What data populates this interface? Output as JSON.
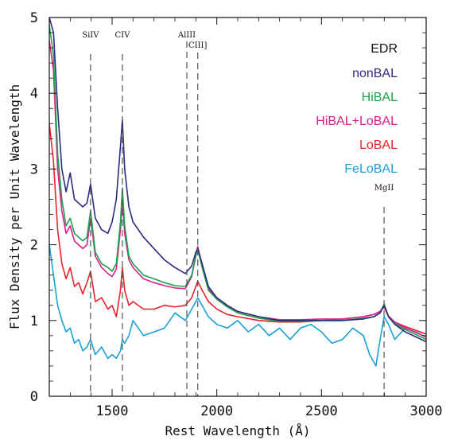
{
  "chart_data": {
    "type": "line",
    "title": "",
    "xlabel": "Rest Wavelength (Å)",
    "ylabel": "Flux Density per Unit Wavelength",
    "xlim": [
      1200,
      3000
    ],
    "ylim": [
      0,
      5
    ],
    "grid": false,
    "legend_position": "top-right",
    "legend_title": "EDR",
    "x_ticks": [
      1500,
      2000,
      2500,
      3000
    ],
    "y_ticks": [
      0,
      1,
      2,
      3,
      4,
      5
    ],
    "line_annotations": [
      {
        "label": "SiIV",
        "x": 1397
      },
      {
        "label": "CIV",
        "x": 1549
      },
      {
        "label": "AlIII",
        "x": 1857
      },
      {
        "label": "CIII]",
        "x": 1909
      },
      {
        "label": "MgII",
        "x": 2799
      }
    ],
    "series": [
      {
        "name": "nonBAL",
        "color": "#2b2b80",
        "x": [
          1200,
          1220,
          1240,
          1260,
          1280,
          1300,
          1320,
          1340,
          1360,
          1380,
          1397,
          1420,
          1450,
          1480,
          1500,
          1520,
          1540,
          1549,
          1560,
          1580,
          1600,
          1650,
          1700,
          1750,
          1800,
          1850,
          1880,
          1900,
          1909,
          1930,
          1960,
          2000,
          2050,
          2100,
          2200,
          2300,
          2400,
          2500,
          2600,
          2700,
          2750,
          2780,
          2799,
          2820,
          2850,
          2900,
          3000
        ],
        "y": [
          5.0,
          4.8,
          3.8,
          3.0,
          2.7,
          2.95,
          2.6,
          2.55,
          2.5,
          2.55,
          2.8,
          2.35,
          2.2,
          2.15,
          2.3,
          2.6,
          3.3,
          3.65,
          3.0,
          2.5,
          2.3,
          2.1,
          1.95,
          1.8,
          1.7,
          1.62,
          1.72,
          1.9,
          1.95,
          1.75,
          1.45,
          1.3,
          1.2,
          1.12,
          1.05,
          1.0,
          1.0,
          1.0,
          1.0,
          1.02,
          1.05,
          1.1,
          1.2,
          1.05,
          0.95,
          0.85,
          0.72
        ]
      },
      {
        "name": "HiBAL",
        "color": "#1fa04c",
        "x": [
          1200,
          1220,
          1240,
          1260,
          1280,
          1300,
          1320,
          1340,
          1360,
          1380,
          1397,
          1420,
          1450,
          1480,
          1500,
          1520,
          1540,
          1549,
          1560,
          1580,
          1600,
          1650,
          1700,
          1750,
          1800,
          1850,
          1880,
          1900,
          1909,
          1930,
          1960,
          2000,
          2050,
          2100,
          2200,
          2300,
          2400,
          2500,
          2600,
          2700,
          2750,
          2780,
          2799,
          2820,
          2850,
          2900,
          3000
        ],
        "y": [
          4.9,
          4.5,
          3.2,
          2.6,
          2.25,
          2.35,
          2.15,
          2.1,
          2.05,
          2.1,
          2.45,
          1.9,
          1.75,
          1.7,
          1.65,
          1.75,
          2.3,
          2.75,
          2.25,
          1.85,
          1.75,
          1.6,
          1.55,
          1.5,
          1.46,
          1.45,
          1.6,
          1.85,
          1.95,
          1.7,
          1.4,
          1.28,
          1.18,
          1.1,
          1.03,
          0.99,
          0.99,
          1.0,
          1.0,
          1.03,
          1.05,
          1.1,
          1.22,
          1.05,
          0.96,
          0.88,
          0.75
        ]
      },
      {
        "name": "HiBAL+LoBAL",
        "color": "#e01e8c",
        "x": [
          1200,
          1220,
          1240,
          1260,
          1280,
          1300,
          1320,
          1340,
          1360,
          1380,
          1397,
          1420,
          1450,
          1480,
          1500,
          1520,
          1540,
          1549,
          1560,
          1580,
          1600,
          1650,
          1700,
          1750,
          1800,
          1850,
          1880,
          1900,
          1909,
          1930,
          1960,
          2000,
          2050,
          2100,
          2200,
          2300,
          2400,
          2500,
          2600,
          2700,
          2750,
          2780,
          2799,
          2820,
          2850,
          2900,
          3000
        ],
        "y": [
          4.7,
          4.3,
          3.0,
          2.45,
          2.15,
          2.25,
          2.05,
          2.0,
          1.95,
          2.0,
          2.35,
          1.85,
          1.7,
          1.62,
          1.58,
          1.68,
          2.2,
          2.6,
          2.15,
          1.8,
          1.7,
          1.55,
          1.5,
          1.46,
          1.43,
          1.42,
          1.58,
          1.85,
          1.98,
          1.72,
          1.42,
          1.3,
          1.2,
          1.12,
          1.05,
          1.01,
          1.01,
          1.02,
          1.02,
          1.05,
          1.08,
          1.12,
          1.2,
          1.06,
          0.98,
          0.9,
          0.78
        ]
      },
      {
        "name": "LoBAL",
        "color": "#e8222a",
        "x": [
          1200,
          1220,
          1240,
          1260,
          1280,
          1300,
          1320,
          1340,
          1360,
          1380,
          1397,
          1420,
          1450,
          1480,
          1500,
          1520,
          1540,
          1549,
          1560,
          1580,
          1600,
          1650,
          1700,
          1750,
          1800,
          1850,
          1880,
          1900,
          1909,
          1930,
          1960,
          2000,
          2050,
          2100,
          2200,
          2300,
          2400,
          2500,
          2600,
          2700,
          2750,
          2780,
          2799,
          2820,
          2850,
          2900,
          3000
        ],
        "y": [
          3.6,
          3.1,
          2.2,
          1.75,
          1.55,
          1.7,
          1.45,
          1.5,
          1.35,
          1.5,
          1.65,
          1.25,
          1.3,
          1.15,
          1.2,
          1.05,
          1.4,
          1.7,
          1.4,
          1.2,
          1.25,
          1.15,
          1.15,
          1.2,
          1.18,
          1.2,
          1.3,
          1.45,
          1.52,
          1.4,
          1.25,
          1.15,
          1.08,
          1.05,
          1.0,
          0.98,
          0.98,
          1.0,
          1.02,
          1.05,
          1.08,
          1.12,
          1.18,
          1.05,
          0.98,
          0.92,
          0.82
        ]
      },
      {
        "name": "FeLoBAL",
        "color": "#1aa0d8",
        "x": [
          1200,
          1220,
          1240,
          1260,
          1280,
          1300,
          1320,
          1340,
          1360,
          1380,
          1397,
          1420,
          1450,
          1480,
          1500,
          1520,
          1540,
          1549,
          1560,
          1580,
          1600,
          1650,
          1700,
          1750,
          1800,
          1850,
          1880,
          1900,
          1909,
          1930,
          1960,
          2000,
          2050,
          2100,
          2150,
          2200,
          2250,
          2300,
          2350,
          2400,
          2450,
          2500,
          2550,
          2600,
          2650,
          2700,
          2730,
          2760,
          2780,
          2799,
          2820,
          2850,
          2900,
          2950,
          3000
        ],
        "y": [
          2.0,
          1.6,
          1.2,
          1.0,
          0.85,
          0.9,
          0.7,
          0.75,
          0.6,
          0.65,
          0.75,
          0.55,
          0.65,
          0.5,
          0.55,
          0.5,
          0.6,
          0.75,
          0.7,
          0.8,
          1.0,
          0.8,
          0.85,
          0.9,
          1.1,
          1.0,
          1.15,
          1.25,
          1.3,
          1.2,
          1.05,
          0.95,
          0.9,
          1.0,
          0.85,
          0.95,
          0.8,
          0.9,
          0.75,
          0.9,
          0.95,
          0.85,
          0.7,
          0.75,
          0.9,
          0.8,
          0.55,
          0.4,
          0.75,
          1.05,
          0.95,
          0.75,
          0.9,
          0.85,
          0.78
        ]
      }
    ]
  }
}
